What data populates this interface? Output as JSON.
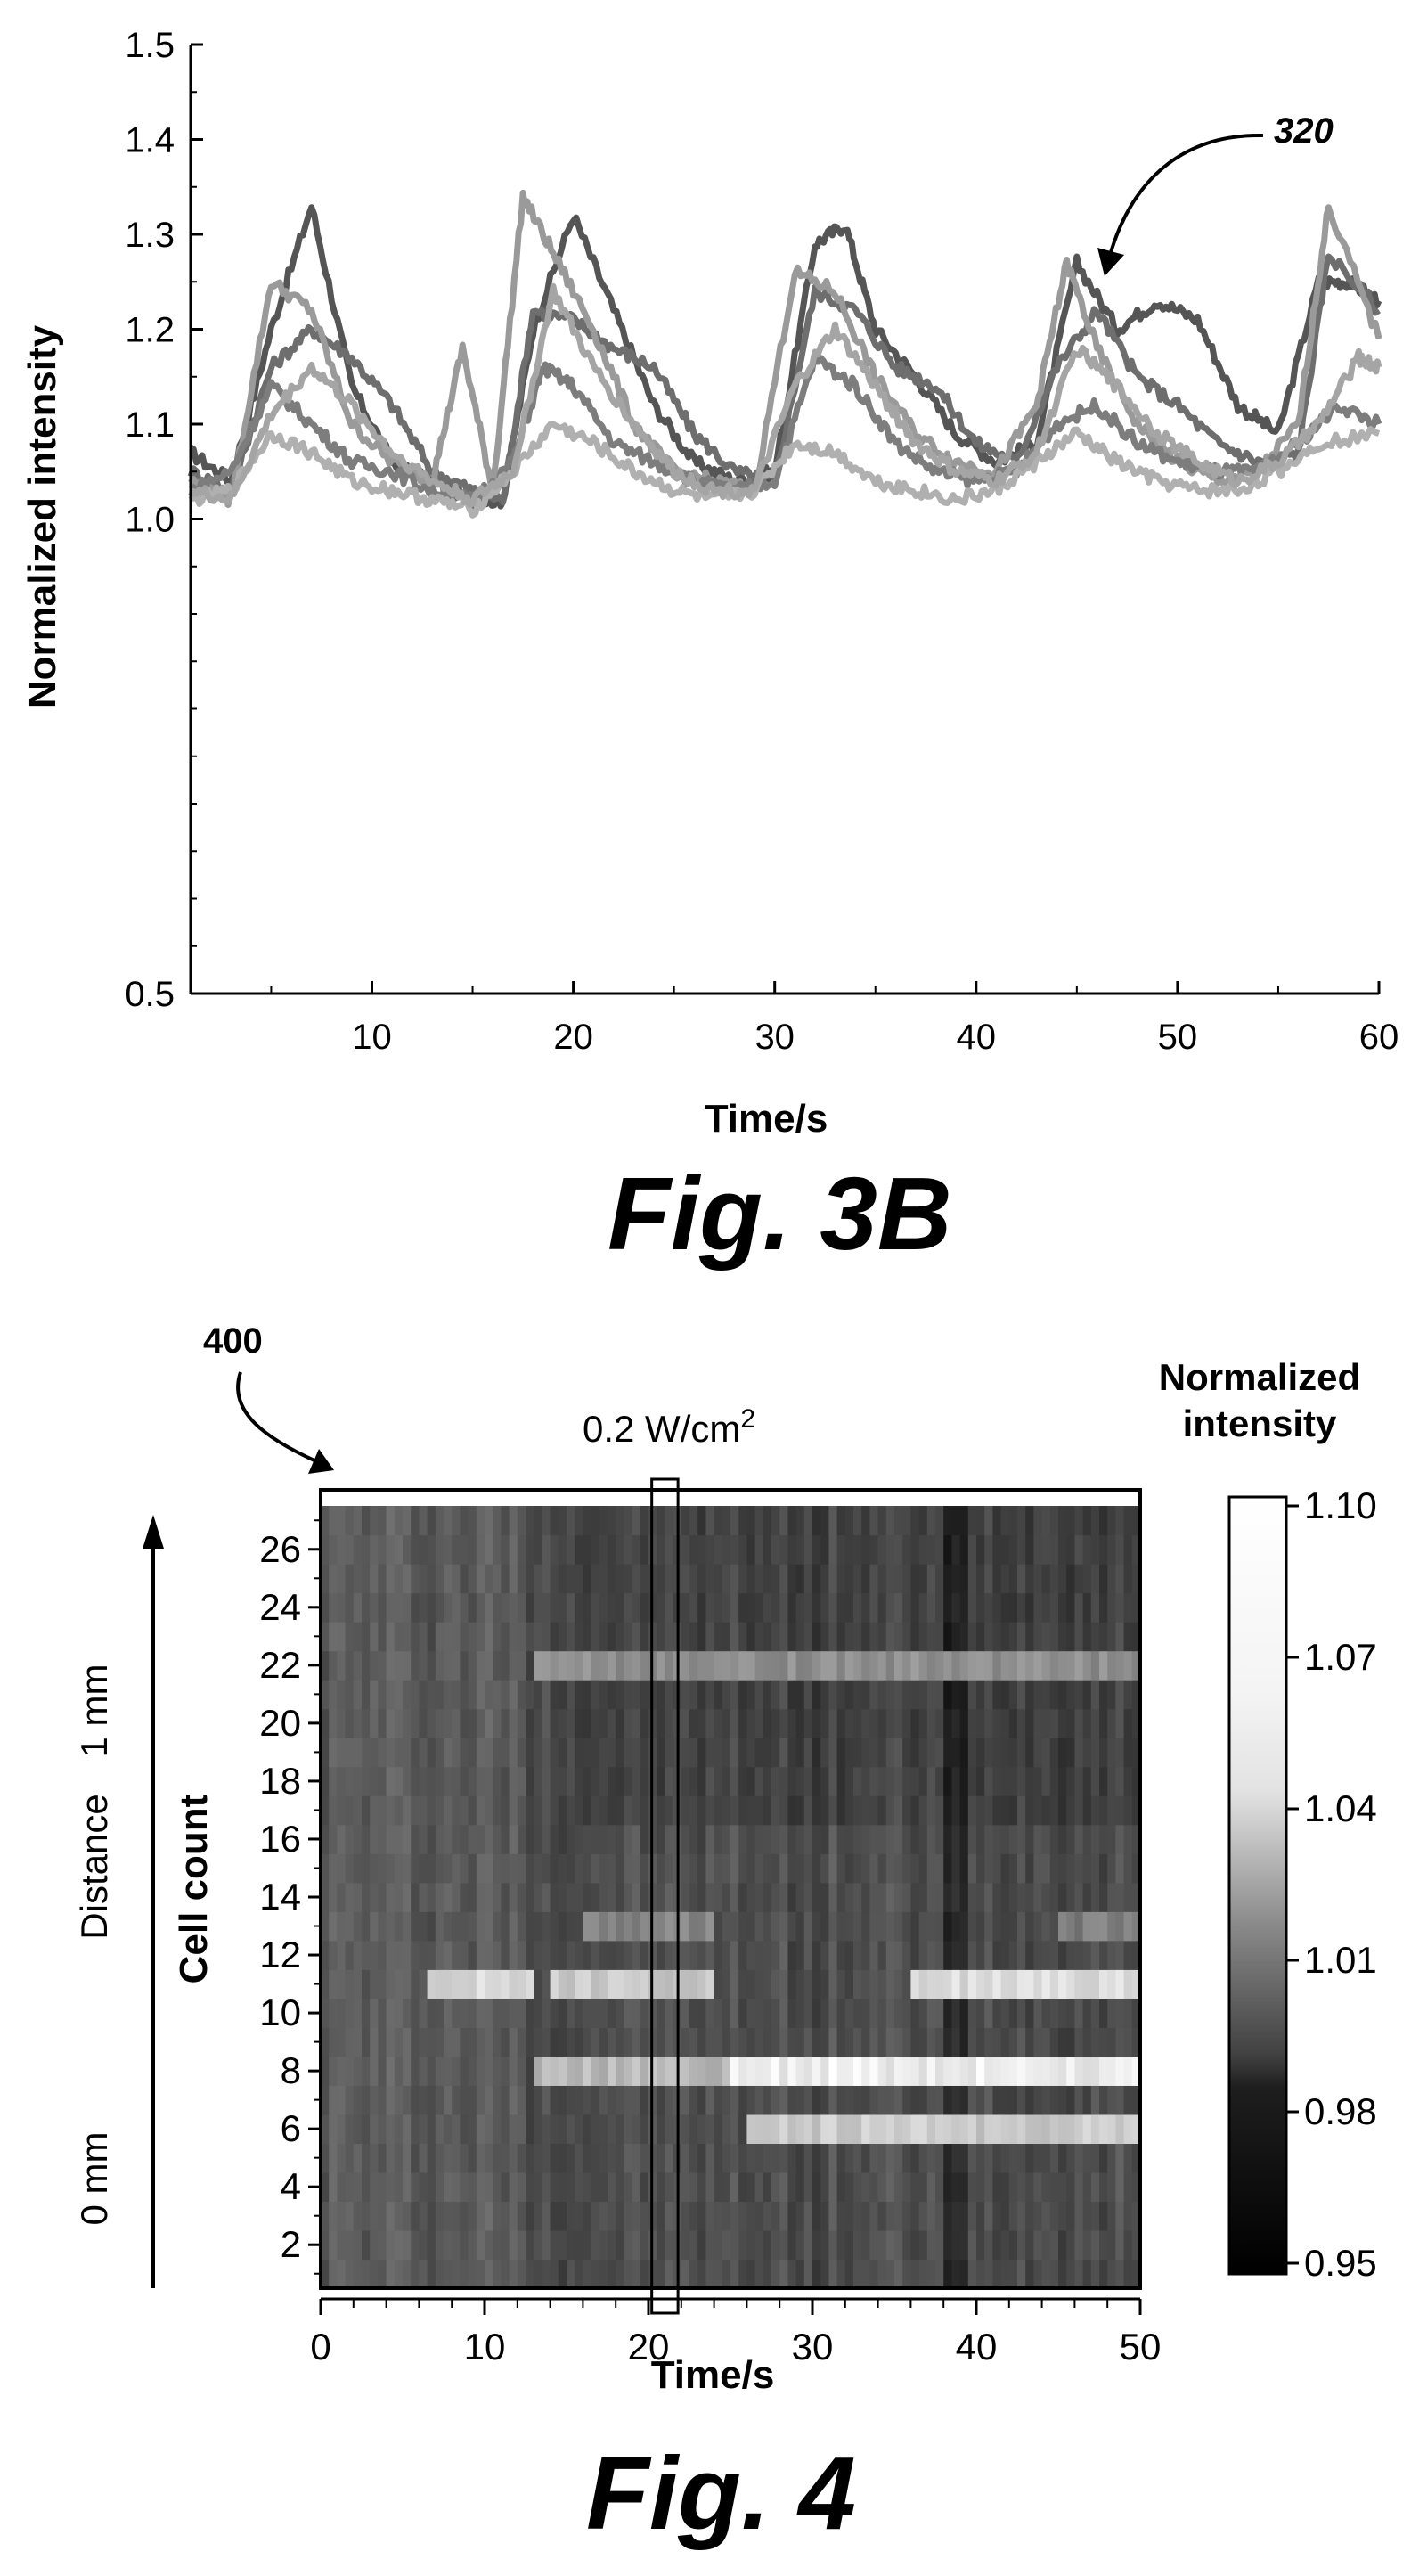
{
  "figures": {
    "fig3b": {
      "caption": "Fig. 3B",
      "ref_label": "320"
    },
    "fig4": {
      "caption": "Fig. 4",
      "ref_label": "400",
      "stimulus_label": "0.2 W/cm",
      "stimulus_exponent": "2",
      "distance_label": "Distance",
      "distance_top": "1 mm",
      "distance_bottom": "0 mm"
    }
  },
  "chart_data": [
    {
      "type": "line",
      "xlabel": "Time/s",
      "ylabel": "Normalized intensity",
      "xlim": [
        1,
        60
      ],
      "ylim": [
        0.5,
        1.5
      ],
      "x_ticks": [
        "10",
        "20",
        "30",
        "40",
        "50",
        "60"
      ],
      "y_ticks": [
        "0.5",
        "1.0",
        "1.1",
        "1.2",
        "1.3",
        "1.4",
        "1.5"
      ],
      "series": [
        {
          "color": "#555555",
          "points": [
            [
              1,
              1.07
            ],
            [
              3,
              1.04
            ],
            [
              5,
              1.2
            ],
            [
              7,
              1.33
            ],
            [
              9,
              1.14
            ],
            [
              11,
              1.06
            ],
            [
              13,
              1.04
            ],
            [
              15,
              1.02
            ],
            [
              16.5,
              1.02
            ],
            [
              18,
              1.2
            ],
            [
              20,
              1.32
            ],
            [
              22,
              1.22
            ],
            [
              24,
              1.12
            ],
            [
              26,
              1.06
            ],
            [
              28,
              1.04
            ],
            [
              30,
              1.05
            ],
            [
              32,
              1.29
            ],
            [
              33.5,
              1.31
            ],
            [
              35,
              1.2
            ],
            [
              37,
              1.15
            ],
            [
              39,
              1.09
            ],
            [
              41,
              1.06
            ],
            [
              43,
              1.08
            ],
            [
              45,
              1.27
            ],
            [
              47,
              1.2
            ],
            [
              49,
              1.23
            ],
            [
              51,
              1.21
            ],
            [
              53,
              1.12
            ],
            [
              55,
              1.09
            ],
            [
              57,
              1.25
            ],
            [
              58.5,
              1.25
            ],
            [
              60,
              1.23
            ]
          ]
        },
        {
          "color": "#6e6e6e",
          "points": [
            [
              1,
              1.05
            ],
            [
              3,
              1.03
            ],
            [
              5,
              1.16
            ],
            [
              7,
              1.2
            ],
            [
              9,
              1.17
            ],
            [
              11,
              1.12
            ],
            [
              13,
              1.05
            ],
            [
              15,
              1.03
            ],
            [
              16.5,
              1.02
            ],
            [
              18,
              1.22
            ],
            [
              20,
              1.21
            ],
            [
              22,
              1.18
            ],
            [
              24,
              1.16
            ],
            [
              26,
              1.09
            ],
            [
              28,
              1.05
            ],
            [
              30,
              1.04
            ],
            [
              32,
              1.24
            ],
            [
              34,
              1.22
            ],
            [
              36,
              1.16
            ],
            [
              38,
              1.14
            ],
            [
              40,
              1.08
            ],
            [
              42,
              1.06
            ],
            [
              44,
              1.16
            ],
            [
              46,
              1.22
            ],
            [
              48,
              1.15
            ],
            [
              50,
              1.12
            ],
            [
              52,
              1.08
            ],
            [
              54,
              1.06
            ],
            [
              56,
              1.07
            ],
            [
              57.5,
              1.28
            ],
            [
              60,
              1.22
            ]
          ]
        },
        {
          "color": "#9a9a9a",
          "points": [
            [
              1,
              1.04
            ],
            [
              3,
              1.02
            ],
            [
              5,
              1.25
            ],
            [
              7,
              1.22
            ],
            [
              9,
              1.1
            ],
            [
              11,
              1.06
            ],
            [
              13,
              1.04
            ],
            [
              14.5,
              1.18
            ],
            [
              16,
              1.03
            ],
            [
              17.5,
              1.34
            ],
            [
              19,
              1.28
            ],
            [
              21,
              1.2
            ],
            [
              23,
              1.1
            ],
            [
              25,
              1.05
            ],
            [
              27,
              1.04
            ],
            [
              29,
              1.03
            ],
            [
              31,
              1.26
            ],
            [
              33,
              1.24
            ],
            [
              35,
              1.15
            ],
            [
              37,
              1.09
            ],
            [
              39,
              1.06
            ],
            [
              41,
              1.05
            ],
            [
              43,
              1.12
            ],
            [
              44.5,
              1.27
            ],
            [
              46,
              1.18
            ],
            [
              48,
              1.1
            ],
            [
              50,
              1.06
            ],
            [
              52,
              1.04
            ],
            [
              54,
              1.05
            ],
            [
              56,
              1.1
            ],
            [
              57.5,
              1.33
            ],
            [
              60,
              1.19
            ]
          ]
        },
        {
          "color": "#7d7d7d",
          "points": [
            [
              1,
              1.03
            ],
            [
              3,
              1.05
            ],
            [
              5,
              1.14
            ],
            [
              7,
              1.1
            ],
            [
              9,
              1.06
            ],
            [
              11,
              1.05
            ],
            [
              13,
              1.03
            ],
            [
              15,
              1.02
            ],
            [
              17,
              1.06
            ],
            [
              18.5,
              1.16
            ],
            [
              20,
              1.14
            ],
            [
              22,
              1.08
            ],
            [
              24,
              1.06
            ],
            [
              26,
              1.04
            ],
            [
              28,
              1.03
            ],
            [
              30,
              1.04
            ],
            [
              32,
              1.17
            ],
            [
              34,
              1.14
            ],
            [
              36,
              1.08
            ],
            [
              38,
              1.05
            ],
            [
              40,
              1.04
            ],
            [
              42,
              1.05
            ],
            [
              44,
              1.1
            ],
            [
              46,
              1.12
            ],
            [
              48,
              1.08
            ],
            [
              50,
              1.06
            ],
            [
              52,
              1.05
            ],
            [
              54,
              1.05
            ],
            [
              56,
              1.08
            ],
            [
              58,
              1.12
            ],
            [
              60,
              1.1
            ]
          ]
        },
        {
          "color": "#b0b0b0",
          "points": [
            [
              1,
              1.02
            ],
            [
              3,
              1.03
            ],
            [
              5,
              1.09
            ],
            [
              7,
              1.07
            ],
            [
              9,
              1.04
            ],
            [
              11,
              1.03
            ],
            [
              13,
              1.02
            ],
            [
              15,
              1.01
            ],
            [
              17,
              1.05
            ],
            [
              19,
              1.1
            ],
            [
              21,
              1.08
            ],
            [
              23,
              1.05
            ],
            [
              25,
              1.03
            ],
            [
              27,
              1.02
            ],
            [
              29,
              1.03
            ],
            [
              31,
              1.08
            ],
            [
              33,
              1.07
            ],
            [
              35,
              1.04
            ],
            [
              37,
              1.03
            ],
            [
              39,
              1.02
            ],
            [
              41,
              1.03
            ],
            [
              43,
              1.06
            ],
            [
              45,
              1.09
            ],
            [
              47,
              1.06
            ],
            [
              49,
              1.04
            ],
            [
              51,
              1.03
            ],
            [
              53,
              1.03
            ],
            [
              55,
              1.05
            ],
            [
              57,
              1.08
            ],
            [
              60,
              1.09
            ]
          ]
        },
        {
          "color": "#a5a5a5",
          "points": [
            [
              1,
              1.03
            ],
            [
              3,
              1.02
            ],
            [
              5,
              1.11
            ],
            [
              7,
              1.16
            ],
            [
              9,
              1.12
            ],
            [
              11,
              1.07
            ],
            [
              13,
              1.04
            ],
            [
              15,
              1.02
            ],
            [
              17,
              1.05
            ],
            [
              19,
              1.24
            ],
            [
              21,
              1.16
            ],
            [
              23,
              1.1
            ],
            [
              25,
              1.05
            ],
            [
              27,
              1.03
            ],
            [
              29,
              1.03
            ],
            [
              31,
              1.14
            ],
            [
              33,
              1.2
            ],
            [
              35,
              1.14
            ],
            [
              37,
              1.08
            ],
            [
              39,
              1.05
            ],
            [
              41,
              1.04
            ],
            [
              43,
              1.07
            ],
            [
              45,
              1.18
            ],
            [
              47,
              1.14
            ],
            [
              49,
              1.09
            ],
            [
              51,
              1.06
            ],
            [
              53,
              1.04
            ],
            [
              55,
              1.06
            ],
            [
              57,
              1.1
            ],
            [
              59,
              1.17
            ],
            [
              60,
              1.16
            ]
          ]
        }
      ]
    },
    {
      "type": "heatmap",
      "xlabel": "Time/s",
      "ylabel": "Cell count",
      "xlim": [
        0,
        50
      ],
      "ylim": [
        0.5,
        27.5
      ],
      "x_ticks": [
        "0",
        "10",
        "20",
        "30",
        "40",
        "50"
      ],
      "y_ticks": [
        "2",
        "4",
        "6",
        "8",
        "10",
        "12",
        "14",
        "16",
        "18",
        "20",
        "22",
        "24",
        "26"
      ],
      "colorbar": {
        "label_line1": "Normalized",
        "label_line2": "intensity",
        "ticks": [
          "1.10",
          "1.07",
          "1.04",
          "1.01",
          "0.98",
          "0.95"
        ],
        "range": [
          0.95,
          1.1
        ]
      },
      "stimulus_window": [
        20.2,
        21.8
      ],
      "bright_bands": [
        {
          "row": 22,
          "from": 13,
          "to": 50,
          "value": 1.035
        },
        {
          "row": 13,
          "from": 16,
          "to": 24,
          "value": 1.03
        },
        {
          "row": 13,
          "from": 45,
          "to": 50,
          "value": 1.025
        },
        {
          "row": 11,
          "from": 6.5,
          "to": 13,
          "value": 1.08
        },
        {
          "row": 11,
          "from": 14,
          "to": 24,
          "value": 1.07
        },
        {
          "row": 11,
          "from": 36,
          "to": 50,
          "value": 1.08
        },
        {
          "row": 8,
          "from": 13,
          "to": 25,
          "value": 1.06
        },
        {
          "row": 8,
          "from": 25,
          "to": 50,
          "value": 1.09
        },
        {
          "row": 6,
          "from": 26,
          "to": 50,
          "value": 1.07
        }
      ]
    }
  ]
}
